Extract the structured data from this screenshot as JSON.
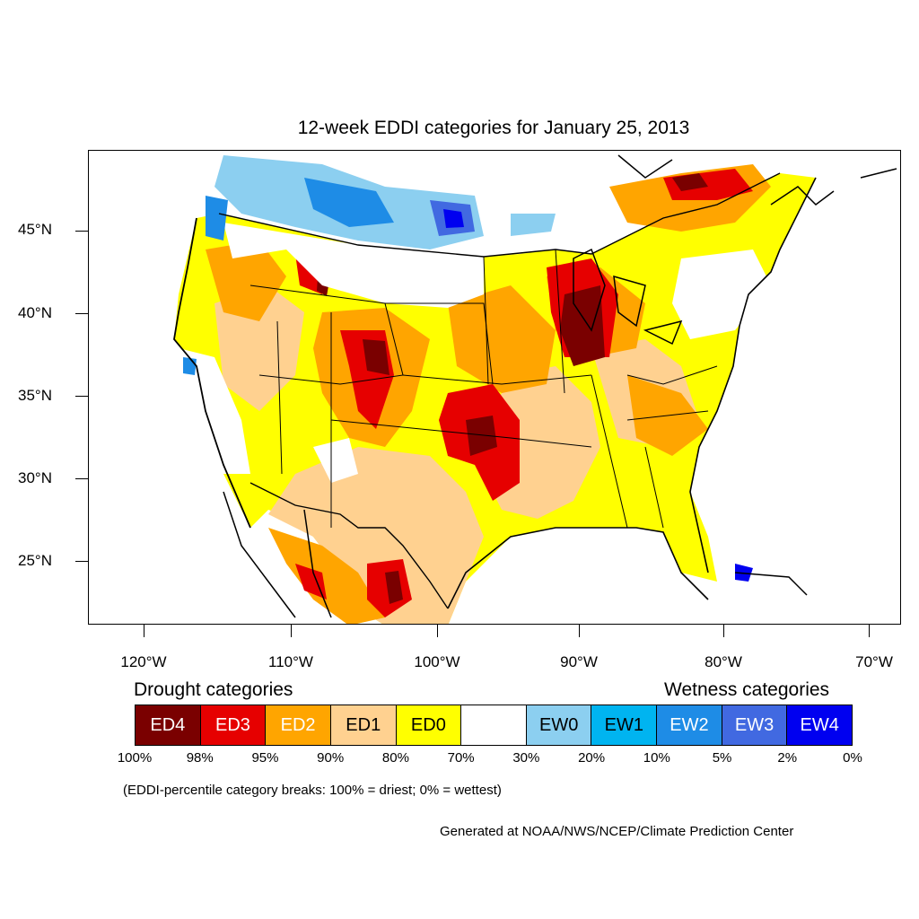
{
  "title": "12-week EDDI categories for January 25, 2013",
  "axes": {
    "lat_labels": [
      "45°N",
      "40°N",
      "35°N",
      "30°N",
      "25°N"
    ],
    "lon_labels": [
      "120°W",
      "110°W",
      "100°W",
      "90°W",
      "80°W",
      "70°W"
    ]
  },
  "legend": {
    "drought_heading": "Drought categories",
    "wetness_heading": "Wetness categories",
    "categories": [
      {
        "label": "ED4",
        "color": "#7a0000",
        "text_color": "#ffffff"
      },
      {
        "label": "ED3",
        "color": "#e60000",
        "text_color": "#ffffff"
      },
      {
        "label": "ED2",
        "color": "#ffa500",
        "text_color": "#ffffff"
      },
      {
        "label": "ED1",
        "color": "#ffd190",
        "text_color": "#000000"
      },
      {
        "label": "ED0",
        "color": "#ffff00",
        "text_color": "#000000"
      },
      {
        "label": "",
        "color": "#ffffff",
        "text_color": "#000000"
      },
      {
        "label": "EW0",
        "color": "#8ccff0",
        "text_color": "#000000"
      },
      {
        "label": "EW1",
        "color": "#00b4f0",
        "text_color": "#000000"
      },
      {
        "label": "EW2",
        "color": "#1e8ce6",
        "text_color": "#ffffff"
      },
      {
        "label": "EW3",
        "color": "#4169e1",
        "text_color": "#ffffff"
      },
      {
        "label": "EW4",
        "color": "#0000f0",
        "text_color": "#ffffff"
      }
    ],
    "percentiles": [
      "100%",
      "98%",
      "95%",
      "90%",
      "80%",
      "70%",
      "30%",
      "20%",
      "10%",
      "5%",
      "2%",
      "0%"
    ]
  },
  "note": "(EDDI-percentile category breaks: 100% = driest; 0% = wettest)",
  "credit": "Generated at NOAA/NWS/NCEP/Climate Prediction Center"
}
